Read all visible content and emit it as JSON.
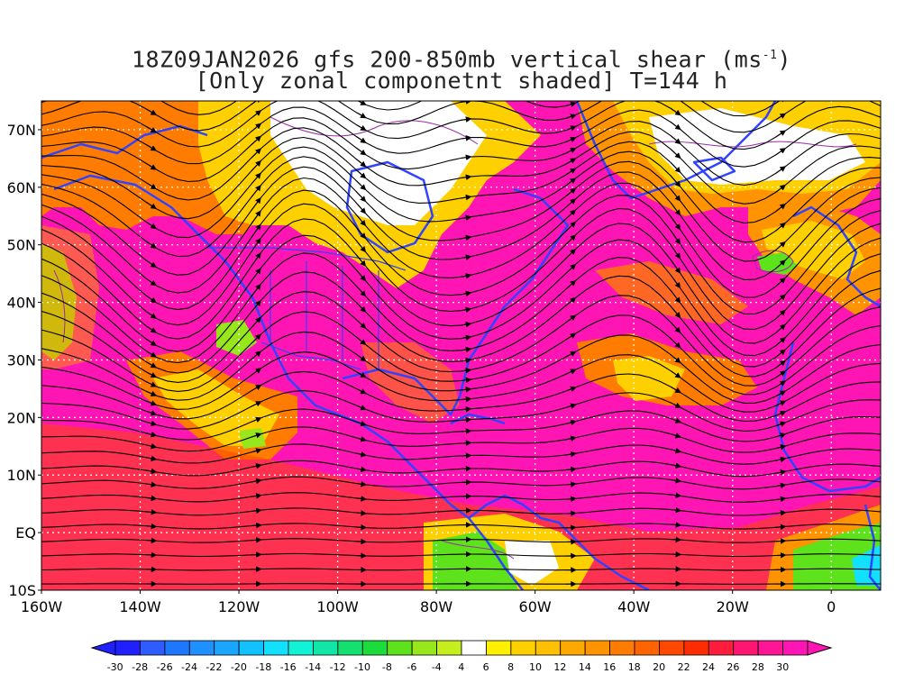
{
  "title": {
    "line1_pre": "18Z09JAN2026 gfs 200-850mb vertical shear (ms",
    "line1_sup": "-1",
    "line1_post": ")",
    "line2": "[Only zonal componetnt shaded] T=144 h"
  },
  "map": {
    "lat_range": [
      -10,
      75
    ],
    "lon_range": [
      -160,
      10
    ],
    "lat_labels": [
      "70N",
      "60N",
      "50N",
      "40N",
      "30N",
      "20N",
      "10N",
      "EQ",
      "10S"
    ],
    "lat_values": [
      70,
      60,
      50,
      40,
      30,
      20,
      10,
      0,
      -10
    ],
    "lon_labels": [
      "160W",
      "140W",
      "120W",
      "100W",
      "80W",
      "60W",
      "40W",
      "20W",
      "0"
    ],
    "lon_values": [
      -160,
      -140,
      -120,
      -100,
      -80,
      -60,
      -40,
      -20,
      0
    ],
    "gridlines": "dotted",
    "coastline_color": "#3044ff",
    "contour_color": "#9b2aa8"
  },
  "colorbar": {
    "labels": [
      "-30",
      "-28",
      "-26",
      "-24",
      "-22",
      "-20",
      "-18",
      "-16",
      "-14",
      "-12",
      "-10",
      "-8",
      "-6",
      "-4",
      "4",
      "6",
      "8",
      "10",
      "12",
      "14",
      "16",
      "18",
      "20",
      "22",
      "24",
      "26",
      "28",
      "30"
    ],
    "colors": [
      "#2020ff",
      "#2f5cff",
      "#1e78ff",
      "#1f91ff",
      "#1aa6ff",
      "#12c1ff",
      "#12e0ff",
      "#12f2d6",
      "#12e6a6",
      "#14e070",
      "#1cdc3c",
      "#5ee21c",
      "#98e61c",
      "#c4ef1c",
      "#ffffff",
      "#fff000",
      "#ffd000",
      "#ffc000",
      "#ffa800",
      "#ff9400",
      "#ff7c00",
      "#ff6400",
      "#ff4800",
      "#ff2c00",
      "#ff1c3c",
      "#ff1670",
      "#ff1694",
      "#ff14b4"
    ]
  }
}
